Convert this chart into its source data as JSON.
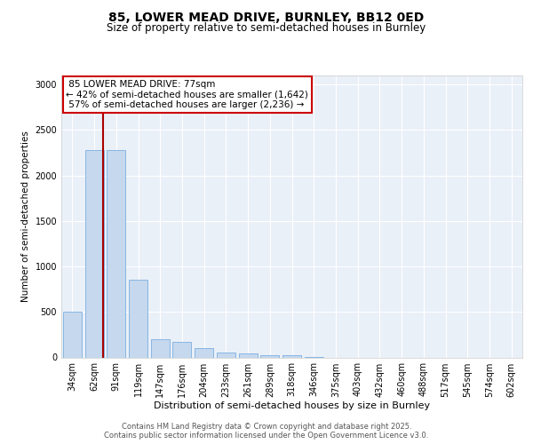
{
  "title1": "85, LOWER MEAD DRIVE, BURNLEY, BB12 0ED",
  "title2": "Size of property relative to semi-detached houses in Burnley",
  "xlabel": "Distribution of semi-detached houses by size in Burnley",
  "ylabel": "Number of semi-detached properties",
  "property_label": "85 LOWER MEAD DRIVE: 77sqm",
  "pct_smaller": 42,
  "n_smaller": 1642,
  "pct_larger": 57,
  "n_larger": 2236,
  "bar_categories": [
    "34sqm",
    "62sqm",
    "91sqm",
    "119sqm",
    "147sqm",
    "176sqm",
    "204sqm",
    "233sqm",
    "261sqm",
    "289sqm",
    "318sqm",
    "346sqm",
    "375sqm",
    "403sqm",
    "432sqm",
    "460sqm",
    "488sqm",
    "517sqm",
    "545sqm",
    "574sqm",
    "602sqm"
  ],
  "bar_values": [
    500,
    2280,
    2280,
    850,
    205,
    175,
    100,
    55,
    40,
    20,
    20,
    5,
    0,
    0,
    0,
    0,
    0,
    0,
    0,
    0,
    0
  ],
  "bar_color": "#c5d8ee",
  "bar_edge_color": "#7aafe0",
  "vline_color": "#aa0000",
  "vline_x_index": 1,
  "annotation_box_color": "#cc0000",
  "ylim": [
    0,
    3100
  ],
  "yticks": [
    0,
    500,
    1000,
    1500,
    2000,
    2500,
    3000
  ],
  "background_color": "#eaf0f8",
  "grid_color": "#ffffff",
  "footer_text": "Contains HM Land Registry data © Crown copyright and database right 2025.\nContains public sector information licensed under the Open Government Licence v3.0.",
  "title1_fontsize": 10,
  "title2_fontsize": 8.5,
  "ylabel_fontsize": 7.5,
  "xlabel_fontsize": 8,
  "tick_fontsize": 7,
  "annotation_fontsize": 7.5,
  "footer_fontsize": 6
}
